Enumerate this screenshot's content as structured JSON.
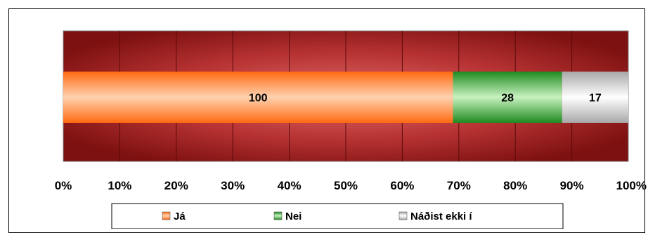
{
  "chart_data": {
    "type": "bar",
    "orientation": "horizontal",
    "stacking": "percent",
    "categories": [
      ""
    ],
    "series": [
      {
        "name": "Já",
        "values": [
          100
        ],
        "color": "#ff7f27"
      },
      {
        "name": "Nei",
        "values": [
          28
        ],
        "color": "#3a9a3a"
      },
      {
        "name": "Náðist ekki í",
        "values": [
          17
        ],
        "color": "#c8c8c8"
      }
    ],
    "data_labels": [
      "100",
      "28",
      "17"
    ],
    "x_ticks": [
      "0%",
      "10%",
      "20%",
      "30%",
      "40%",
      "50%",
      "60%",
      "70%",
      "80%",
      "90%",
      "100%"
    ],
    "xlim": [
      0,
      100
    ],
    "grid": true,
    "legend_position": "bottom",
    "plot_background": "#9b1b1b",
    "title": "",
    "xlabel": "",
    "ylabel": ""
  }
}
